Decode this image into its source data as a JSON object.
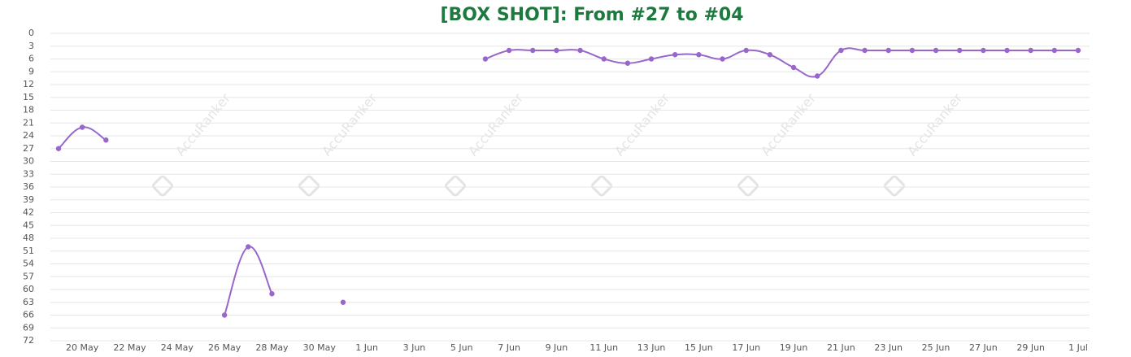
{
  "chart_data": {
    "type": "line",
    "title": "[BOX SHOT]: From #27 to #04",
    "watermark": "AccuRanker",
    "categories": [
      null,
      "20 May",
      null,
      "22 May",
      null,
      "24 May",
      null,
      "26 May",
      null,
      "28 May",
      null,
      "30 May",
      null,
      "1 Jun",
      null,
      "3 Jun",
      null,
      "5 Jun",
      null,
      "7 Jun",
      null,
      "9 Jun",
      null,
      "11 Jun",
      null,
      "13 Jun",
      null,
      "15 Jun",
      null,
      "17 Jun",
      null,
      "19 Jun",
      null,
      "21 Jun",
      null,
      "23 Jun",
      null,
      "25 Jun",
      null,
      "27 Jun",
      null,
      "29 Jun",
      null,
      "1 Jul"
    ],
    "series": [
      {
        "color": "#9966cc",
        "values": [
          27,
          22,
          25,
          null,
          null,
          null,
          null,
          66,
          50,
          61,
          null,
          null,
          63,
          null,
          null,
          null,
          null,
          null,
          6,
          4,
          4,
          4,
          4,
          6,
          7,
          6,
          5,
          5,
          6,
          4,
          5,
          8,
          10,
          4,
          4,
          4,
          4,
          4,
          4,
          4,
          4,
          4,
          4,
          4
        ]
      }
    ],
    "ylim": [
      0,
      72
    ],
    "y_reversed": true,
    "yticks": [
      0,
      3,
      6,
      9,
      12,
      15,
      18,
      21,
      24,
      27,
      30,
      33,
      36,
      39,
      42,
      45,
      48,
      51,
      54,
      57,
      60,
      63,
      66,
      69,
      72
    ],
    "grid": true
  }
}
